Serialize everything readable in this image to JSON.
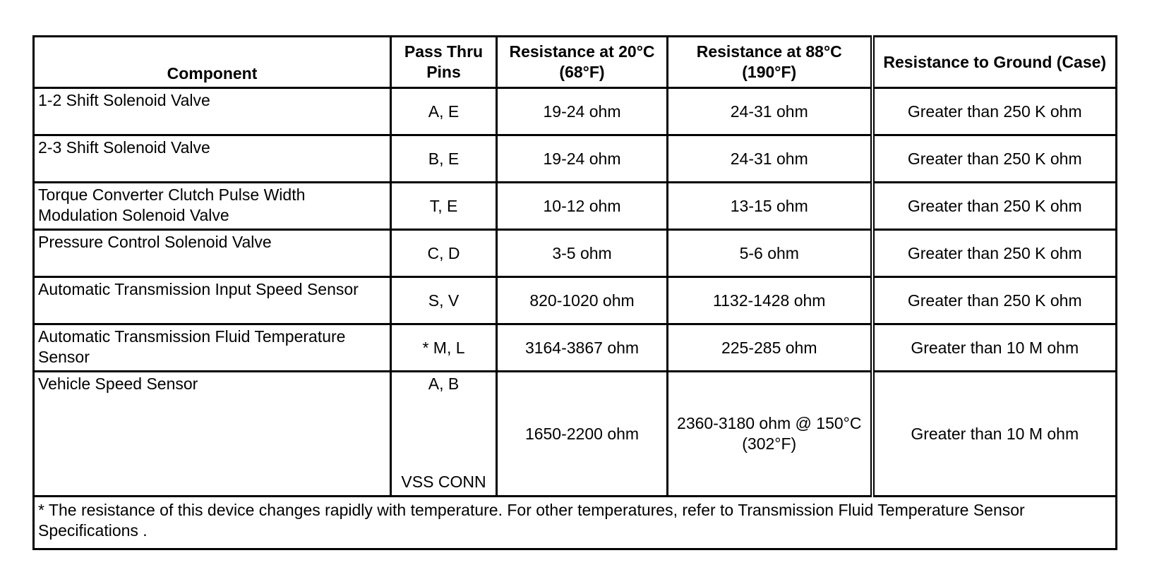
{
  "table": {
    "headers": {
      "component": "Component",
      "pins": "Pass Thru Pins",
      "res20": "Resistance at 20°C (68°F)",
      "res88": "Resistance at 88°C (190°F)",
      "ground": "Resistance to Ground (Case)"
    },
    "rows": [
      {
        "component": "1-2 Shift Solenoid Valve",
        "pins": "A, E",
        "res20": "19-24 ohm",
        "res88": "24-31 ohm",
        "ground": "Greater than 250 K ohm"
      },
      {
        "component": "2-3 Shift Solenoid Valve",
        "pins": "B, E",
        "res20": "19-24 ohm",
        "res88": "24-31 ohm",
        "ground": "Greater than 250 K ohm"
      },
      {
        "component": "Torque Converter Clutch Pulse Width Modulation Solenoid Valve",
        "pins": "T, E",
        "res20": "10-12 ohm",
        "res88": "13-15 ohm",
        "ground": "Greater than 250 K ohm"
      },
      {
        "component": "Pressure Control Solenoid Valve",
        "pins": "C, D",
        "res20": "3-5 ohm",
        "res88": "5-6 ohm",
        "ground": "Greater than 250 K ohm"
      },
      {
        "component": "Automatic Transmission Input Speed Sensor",
        "pins": "S, V",
        "res20": "820-1020 ohm",
        "res88": "1132-1428 ohm",
        "ground": "Greater than 250 K ohm"
      },
      {
        "component": "Automatic Transmission Fluid Temperature Sensor",
        "pins": "* M, L",
        "res20": "3164-3867 ohm",
        "res88": "225-285 ohm",
        "ground": "Greater than 10 M ohm"
      },
      {
        "component": "Vehicle Speed Sensor",
        "pins": "A, B",
        "pins_extra": "VSS CONN",
        "res20": "1650-2200 ohm",
        "res88": "2360-3180 ohm @ 150°C (302°F)",
        "ground": "Greater than 10 M ohm"
      }
    ],
    "footnote": "* The resistance of this device changes rapidly with temperature. For other temperatures, refer to Transmission Fluid Temperature Sensor Specifications ."
  }
}
